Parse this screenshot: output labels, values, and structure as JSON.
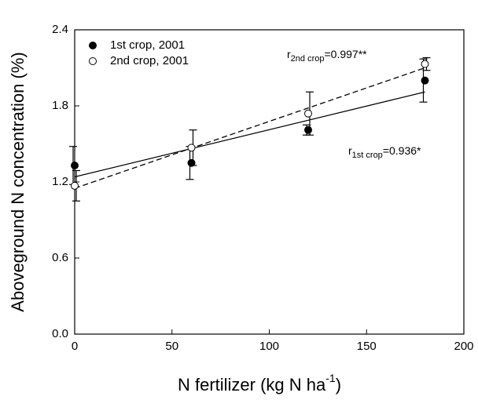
{
  "chart_data": {
    "type": "scatter",
    "xlabel": {
      "text": "N fertilizer (kg N ha",
      "sup": "-1",
      "end": ")"
    },
    "ylabel": "Aboveground N concentration (%)",
    "xlim": [
      0,
      200
    ],
    "xticks": [
      0,
      50,
      100,
      150,
      200
    ],
    "ylim": [
      0,
      2.4
    ],
    "yticks": [
      {
        "value": 0,
        "label": "0.0"
      },
      0.6,
      1.2,
      1.8,
      2.4
    ],
    "legend": "upper left",
    "series": [
      {
        "name": "1st crop, 2001",
        "color": "#000000",
        "marker": "filled",
        "x": [
          0,
          60,
          120,
          180
        ],
        "values": [
          1.33,
          1.35,
          1.61,
          2.0
        ],
        "errors": [
          0.15,
          0.13,
          0.04,
          0.17
        ],
        "fit": {
          "dash": "solid",
          "x": [
            0,
            180
          ],
          "values": [
            1.24,
            1.91
          ]
        }
      },
      {
        "name": "2nd crop, 2001",
        "color": "#000000",
        "marker": "open",
        "x": [
          0,
          60,
          120,
          180
        ],
        "values": [
          1.17,
          1.47,
          1.74,
          2.13
        ],
        "errors": [
          0.12,
          0.14,
          0.17,
          0.05
        ],
        "fit": {
          "dash": "dashed",
          "x": [
            0,
            180
          ],
          "values": [
            1.15,
            2.1
          ]
        }
      }
    ],
    "annotations": [
      {
        "r": "r",
        "sub": "2nd crop",
        "text": "=0.997**"
      },
      {
        "r": "r",
        "sub": "1st crop",
        "text": "=0.936*"
      }
    ]
  }
}
